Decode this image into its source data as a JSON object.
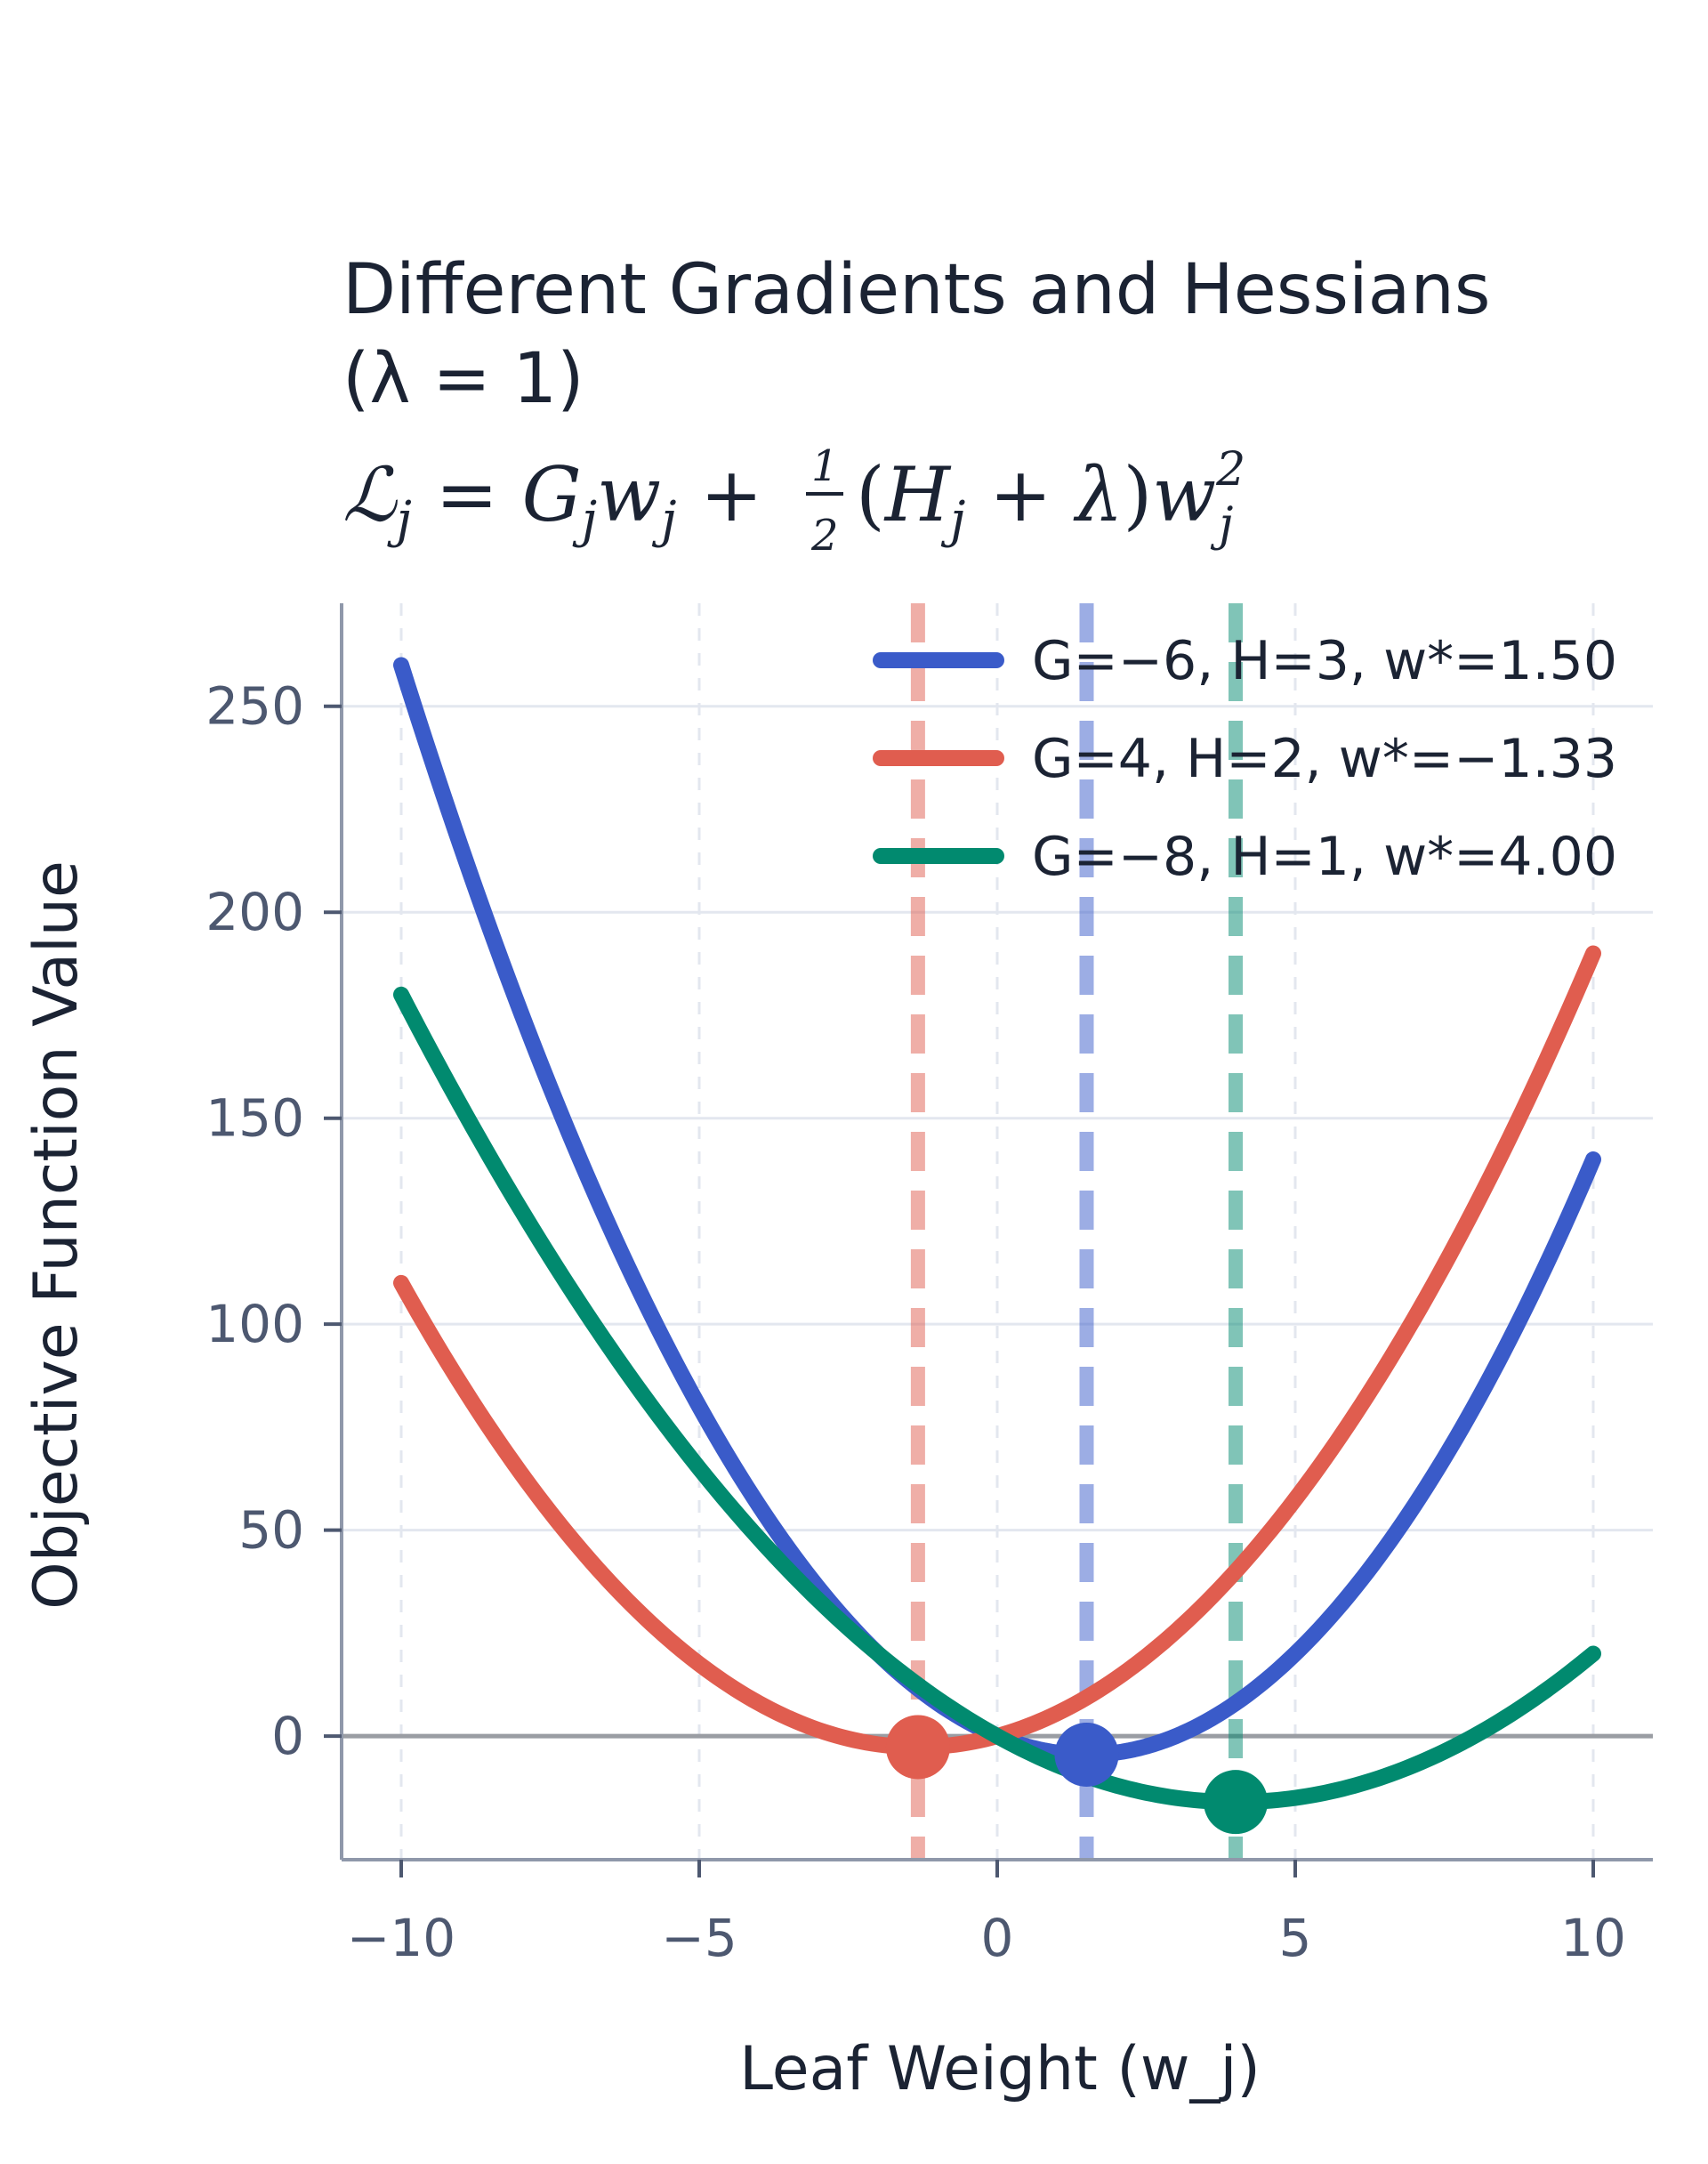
{
  "chart_data": {
    "type": "line",
    "title": "Different Gradients and Hessians",
    "subtitle": "(λ = 1)",
    "formula": {
      "loss": "ℒ",
      "sub_j": "j",
      "eq": " = ",
      "G": "G",
      "w": "w",
      "plus": " + ",
      "half_num": "1",
      "half_den": "2",
      "open": "(",
      "H": "H",
      "lambda": "λ",
      "close": ")",
      "sq": "2"
    },
    "xlabel": "Leaf Weight (w_j)",
    "ylabel": "Objective Function Value",
    "xlim": [
      -11,
      11
    ],
    "ylim": [
      -30,
      275
    ],
    "x_ticks": [
      -10,
      -5,
      0,
      5,
      10
    ],
    "x_tick_labels": [
      "−10",
      "−5",
      "0",
      "5",
      "10"
    ],
    "y_ticks": [
      0,
      50,
      100,
      150,
      200,
      250
    ],
    "y_tick_labels": [
      "0",
      "50",
      "100",
      "150",
      "200",
      "250"
    ],
    "x_range": [
      -10,
      10
    ],
    "lambda": 1,
    "grid": true,
    "legend_position": "top-right",
    "series": [
      {
        "name": "G=−6, H=3, w*=1.50",
        "G": -6,
        "H": 3,
        "w_opt": 1.5,
        "min_value": -4.5,
        "color": "#3a5bc9"
      },
      {
        "name": "G=4, H=2, w*=−1.33",
        "G": 4,
        "H": 2,
        "w_opt": -1.33,
        "min_value": -2.67,
        "color": "#e05d4f"
      },
      {
        "name": "G=−8, H=1, w*=4.00",
        "G": -8,
        "H": 1,
        "w_opt": 4.0,
        "min_value": -16.0,
        "color": "#018a6f"
      }
    ]
  }
}
